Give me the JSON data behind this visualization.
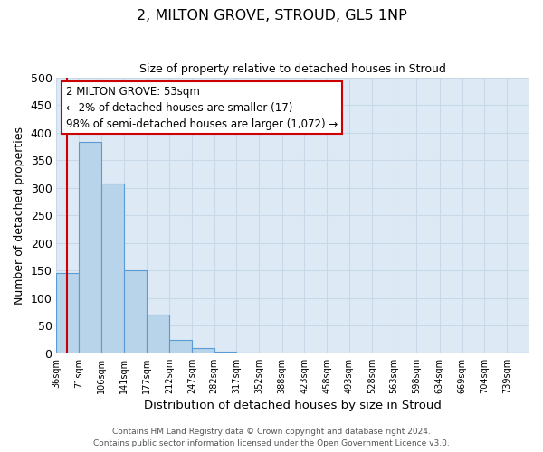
{
  "title": "2, MILTON GROVE, STROUD, GL5 1NP",
  "subtitle": "Size of property relative to detached houses in Stroud",
  "xlabel": "Distribution of detached houses by size in Stroud",
  "ylabel": "Number of detached properties",
  "bar_values": [
    145,
    383,
    308,
    150,
    70,
    25,
    10,
    3,
    1,
    0,
    0,
    0,
    0,
    0,
    0,
    0,
    0,
    0,
    0,
    0,
    2
  ],
  "bin_labels": [
    "36sqm",
    "71sqm",
    "106sqm",
    "141sqm",
    "177sqm",
    "212sqm",
    "247sqm",
    "282sqm",
    "317sqm",
    "352sqm",
    "388sqm",
    "423sqm",
    "458sqm",
    "493sqm",
    "528sqm",
    "563sqm",
    "598sqm",
    "634sqm",
    "669sqm",
    "704sqm",
    "739sqm"
  ],
  "bar_color": "#b8d4ea",
  "bar_edge_color": "#5b9bd5",
  "grid_color": "#c8d8e8",
  "bg_color": "#ddeaf5",
  "vline_color": "#cc0000",
  "annotation_box_color": "#cc0000",
  "annotation_lines": [
    "2 MILTON GROVE: 53sqm",
    "← 2% of detached houses are smaller (17)",
    "98% of semi-detached houses are larger (1,072) →"
  ],
  "ylim": [
    0,
    500
  ],
  "footer1": "Contains HM Land Registry data © Crown copyright and database right 2024.",
  "footer2": "Contains public sector information licensed under the Open Government Licence v3.0.",
  "bin_edges": [
    36,
    71,
    106,
    141,
    177,
    212,
    247,
    282,
    317,
    352,
    388,
    423,
    458,
    493,
    528,
    563,
    598,
    634,
    669,
    704,
    739
  ],
  "bin_width": 35,
  "vline_x": 53,
  "yticks": [
    0,
    50,
    100,
    150,
    200,
    250,
    300,
    350,
    400,
    450,
    500
  ]
}
